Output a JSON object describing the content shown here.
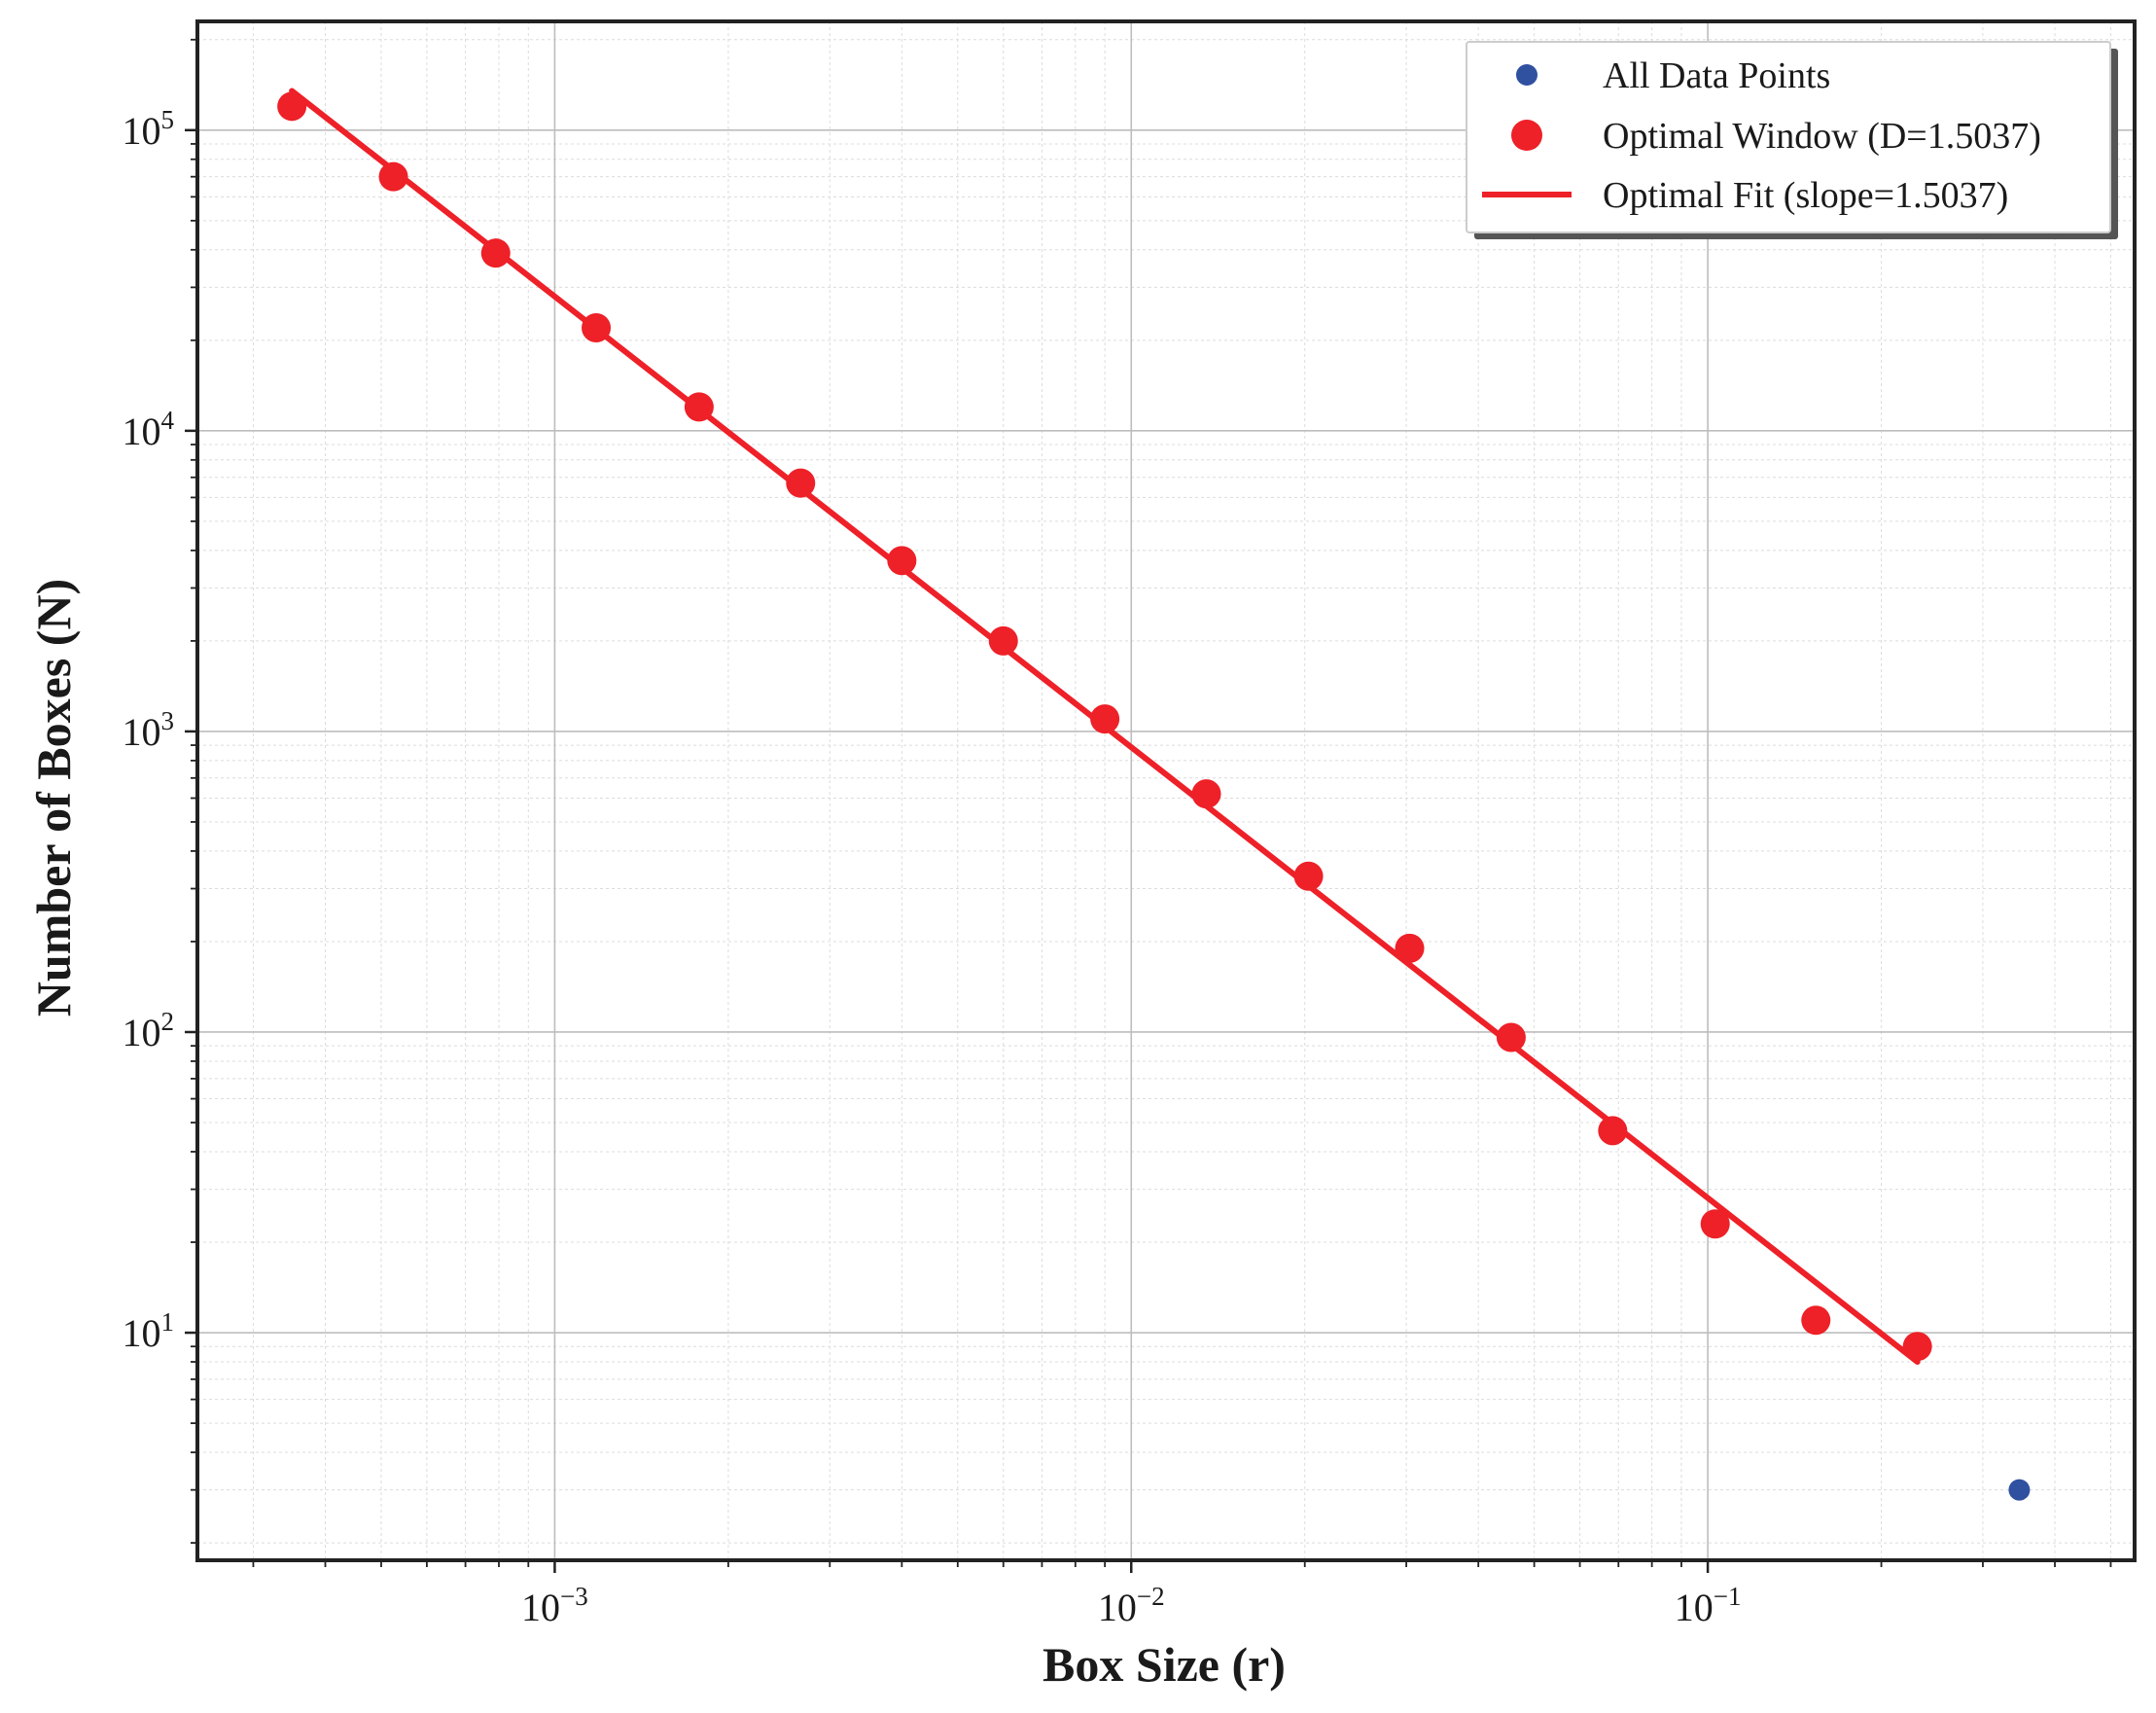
{
  "chart_data": {
    "type": "scatter",
    "xlabel": "Box Size (r)",
    "ylabel": "Number of Boxes (N)",
    "xscale": "log",
    "yscale": "log",
    "xlim": [
      0.00024,
      0.55
    ],
    "ylim": [
      1.75,
      230000
    ],
    "grid": true,
    "legend_position": "top-right",
    "x_ticks": [
      {
        "value": 0.001,
        "base": "10",
        "exp": "−3"
      },
      {
        "value": 0.01,
        "base": "10",
        "exp": "−2"
      },
      {
        "value": 0.1,
        "base": "10",
        "exp": "−1"
      }
    ],
    "y_ticks": [
      {
        "value": 10,
        "base": "10",
        "exp": "1"
      },
      {
        "value": 100,
        "base": "10",
        "exp": "2"
      },
      {
        "value": 1000,
        "base": "10",
        "exp": "3"
      },
      {
        "value": 10000,
        "base": "10",
        "exp": "4"
      },
      {
        "value": 100000,
        "base": "10",
        "exp": "5"
      }
    ],
    "series": [
      {
        "name": "All Data Points",
        "kind": "scatter",
        "color": "#3050a0",
        "marker_size": "small",
        "x": [
          0.00035,
          0.000525,
          0.00079,
          0.00118,
          0.00178,
          0.00267,
          0.004,
          0.006,
          0.009,
          0.0135,
          0.0203,
          0.0304,
          0.0456,
          0.0684,
          0.103,
          0.154,
          0.231,
          0.347
        ],
        "y": [
          120000,
          70000,
          39000,
          22000,
          12000,
          6700,
          3700,
          2000,
          1100,
          620,
          330,
          190,
          96,
          47,
          23,
          11,
          9,
          3
        ]
      },
      {
        "name": "Optimal Window (D=1.5037)",
        "kind": "scatter",
        "color": "#ee2028",
        "marker_size": "large",
        "x": [
          0.00035,
          0.000525,
          0.00079,
          0.00118,
          0.00178,
          0.00267,
          0.004,
          0.006,
          0.009,
          0.0135,
          0.0203,
          0.0304,
          0.0456,
          0.0684,
          0.103,
          0.154,
          0.231
        ],
        "y": [
          120000,
          70000,
          39000,
          22000,
          12000,
          6700,
          3700,
          2000,
          1100,
          620,
          330,
          190,
          96,
          47,
          23,
          11,
          9
        ]
      },
      {
        "name": "Optimal Fit (slope=1.5037)",
        "kind": "line",
        "color": "#ee2028",
        "x": [
          0.00035,
          0.231
        ],
        "y": [
          135000,
          8
        ]
      }
    ]
  }
}
